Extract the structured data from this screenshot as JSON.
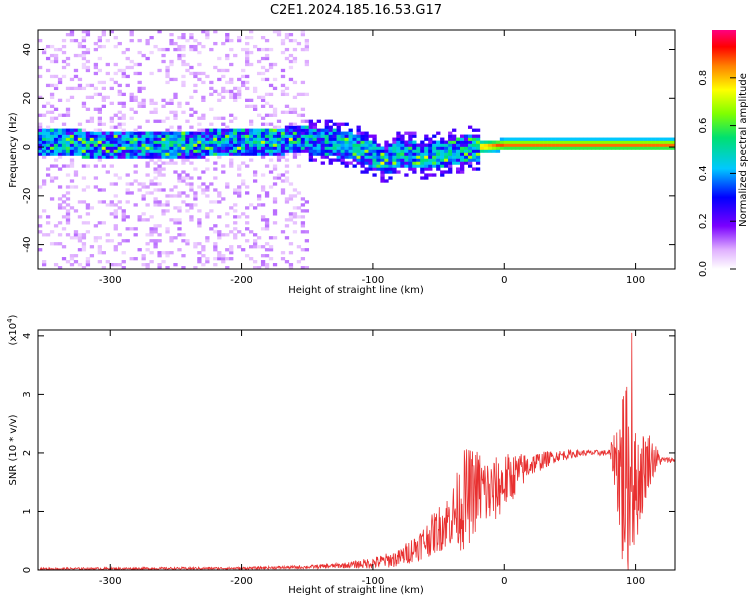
{
  "title": "C2E1.2024.185.16.53.G17",
  "colors": {
    "snr_line": "#e83030",
    "frame": "#000000"
  },
  "chart_data": [
    {
      "type": "heatmap",
      "title": "C2E1.2024.185.16.53.G17",
      "xlabel": "Height of straight line (km)",
      "ylabel": "Frequency (Hz)",
      "xlim": [
        -355,
        130
      ],
      "ylim": [
        -50,
        48
      ],
      "x_ticks": [
        -300,
        -200,
        -100,
        0,
        100
      ],
      "y_ticks": [
        -40,
        -20,
        0,
        20,
        40
      ],
      "x_tick_labels": [
        "-300",
        "-200",
        "-100",
        "0",
        "100"
      ],
      "y_tick_labels": [
        "-40",
        "-20",
        "0",
        "20",
        "40"
      ],
      "colorbar": {
        "label": "Normalized spectral amplitude",
        "range": [
          0,
          1
        ],
        "ticks": [
          0.0,
          0.2,
          0.4,
          0.6,
          0.8
        ],
        "tick_labels": [
          "0.0",
          "0.2",
          "0.4",
          "0.6",
          "0.8"
        ],
        "colormap": "rainbow (white-violet-blue-cyan-green-yellow-orange-red-magenta)"
      },
      "features": {
        "ridge_center_freq_by_height": [
          [
            -350,
            2
          ],
          [
            -300,
            1
          ],
          [
            -250,
            1
          ],
          [
            -200,
            2
          ],
          [
            -150,
            3
          ],
          [
            -120,
            1
          ],
          [
            -100,
            -3
          ],
          [
            -90,
            -6
          ],
          [
            -80,
            -2
          ],
          [
            -60,
            -4
          ],
          [
            -40,
            -2
          ],
          [
            -20,
            0
          ],
          [
            0,
            1
          ],
          [
            40,
            1
          ],
          [
            80,
            1
          ],
          [
            125,
            1
          ]
        ],
        "noise_region_x": [
          -355,
          -150
        ],
        "noise_region_freq": [
          -50,
          48
        ],
        "ridge_core_amplitude_right": 0.9
      }
    },
    {
      "type": "line",
      "xlabel": "Height of straight line (km)",
      "ylabel": "SNR (10 * v/v)",
      "y_scale_label": "(x10",
      "y_scale_exponent": "4",
      "y_scale_suffix": ")",
      "xlim": [
        -355,
        130
      ],
      "ylim": [
        0,
        4.1
      ],
      "x_ticks": [
        -300,
        -200,
        -100,
        0,
        100
      ],
      "y_ticks": [
        0,
        1,
        2,
        3,
        4
      ],
      "x_tick_labels": [
        "-300",
        "-200",
        "-100",
        "0",
        "100"
      ],
      "y_tick_labels": [
        "0",
        "1",
        "2",
        "3",
        "4"
      ],
      "series": [
        {
          "color": "#e83030",
          "envelope": {
            "x": [
              -355,
              -200,
              -150,
              -120,
              -100,
              -80,
              -60,
              -40,
              -30,
              -20,
              -10,
              0,
              20,
              40,
              60,
              80,
              85,
              90,
              95,
              100,
              110,
              120,
              130
            ],
            "y_mean": [
              0.02,
              0.03,
              0.05,
              0.08,
              0.12,
              0.2,
              0.5,
              0.9,
              1.2,
              1.4,
              1.3,
              1.5,
              1.8,
              1.95,
              2.0,
              2.0,
              1.9,
              1.6,
              1.5,
              1.4,
              1.9,
              1.88,
              1.88
            ],
            "y_spread": [
              0.02,
              0.02,
              0.03,
              0.05,
              0.1,
              0.15,
              0.3,
              0.5,
              0.9,
              0.7,
              0.6,
              0.5,
              0.2,
              0.1,
              0.05,
              0.05,
              0.6,
              1.8,
              1.6,
              1.0,
              0.5,
              0.05,
              0.05
            ],
            "peak": [
              97,
              4.05
            ]
          }
        }
      ]
    }
  ]
}
